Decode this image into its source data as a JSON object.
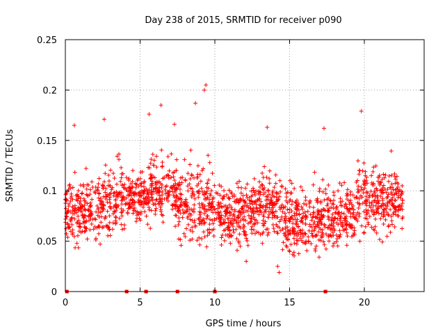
{
  "chart_data": {
    "type": "scatter",
    "title": "Day 238 of 2015, SRMTID for receiver p090",
    "xlabel": "GPS time / hours",
    "ylabel": "SRMTID / TECUs",
    "xlim": [
      0,
      24
    ],
    "ylim": [
      0,
      0.25
    ],
    "xticks": [
      0,
      5,
      10,
      15,
      20
    ],
    "xtick_labels": [
      "0",
      "5",
      "10",
      "15",
      "20"
    ],
    "yticks": [
      0,
      0.05,
      0.1,
      0.15,
      0.2,
      0.25
    ],
    "ytick_labels": [
      "0",
      "0.05",
      "0.1",
      "0.15",
      "0.2",
      "0.25"
    ],
    "grid": true,
    "marker": "+",
    "color": "#ff0000",
    "zero_markers_x": [
      0.1,
      4.1,
      5.4,
      7.5,
      10.0,
      17.4
    ],
    "clusters": [
      {
        "x_start": 0.0,
        "x_end": 2.5,
        "y_center": 0.08,
        "y_spread": 0.03
      },
      {
        "x_start": 2.5,
        "x_end": 4.0,
        "y_center": 0.09,
        "y_spread": 0.035
      },
      {
        "x_start": 4.0,
        "x_end": 5.5,
        "y_center": 0.095,
        "y_spread": 0.025
      },
      {
        "x_start": 5.5,
        "x_end": 7.5,
        "y_center": 0.1,
        "y_spread": 0.035
      },
      {
        "x_start": 7.5,
        "x_end": 10.0,
        "y_center": 0.085,
        "y_spread": 0.04
      },
      {
        "x_start": 10.0,
        "x_end": 12.5,
        "y_center": 0.078,
        "y_spread": 0.03
      },
      {
        "x_start": 12.5,
        "x_end": 14.5,
        "y_center": 0.085,
        "y_spread": 0.035
      },
      {
        "x_start": 14.5,
        "x_end": 16.5,
        "y_center": 0.07,
        "y_spread": 0.035
      },
      {
        "x_start": 16.5,
        "x_end": 19.5,
        "y_center": 0.075,
        "y_spread": 0.032
      },
      {
        "x_start": 19.5,
        "x_end": 22.6,
        "y_center": 0.09,
        "y_spread": 0.035
      }
    ],
    "notable_points": [
      {
        "x": 9.4,
        "y": 0.205
      },
      {
        "x": 9.3,
        "y": 0.2
      },
      {
        "x": 8.7,
        "y": 0.187
      },
      {
        "x": 6.4,
        "y": 0.185
      },
      {
        "x": 19.8,
        "y": 0.179
      },
      {
        "x": 5.6,
        "y": 0.176
      },
      {
        "x": 2.6,
        "y": 0.171
      },
      {
        "x": 7.3,
        "y": 0.166
      },
      {
        "x": 0.6,
        "y": 0.165
      },
      {
        "x": 13.5,
        "y": 0.163
      },
      {
        "x": 17.3,
        "y": 0.162
      },
      {
        "x": 14.3,
        "y": 0.019
      },
      {
        "x": 14.2,
        "y": 0.025
      },
      {
        "x": 12.1,
        "y": 0.03
      }
    ]
  }
}
